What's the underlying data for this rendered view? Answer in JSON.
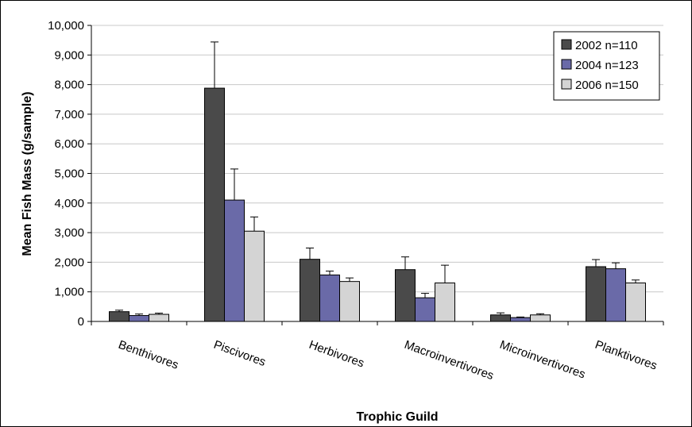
{
  "chart_data": {
    "type": "bar",
    "title": "",
    "xlabel": "Trophic Guild",
    "ylabel": "Mean Fish Mass (g/sample)",
    "ylim": [
      0,
      10000
    ],
    "yticks": [
      0,
      1000,
      2000,
      3000,
      4000,
      5000,
      6000,
      7000,
      8000,
      9000,
      10000
    ],
    "ytick_labels": [
      "0",
      "1,000",
      "2,000",
      "3,000",
      "4,000",
      "5,000",
      "6,000",
      "7,000",
      "8,000",
      "9,000",
      "10,000"
    ],
    "grid": "horizontal",
    "legend_position": "top-right",
    "categories": [
      "Benthivores",
      "Piscivores",
      "Herbivores",
      "Macroinvertivores",
      "Microinvertivores",
      "Planktivores"
    ],
    "series": [
      {
        "name": "2002 n=110",
        "color": "#4a4a4a",
        "values": [
          330,
          7880,
          2100,
          1750,
          220,
          1850
        ],
        "error_upper": [
          50,
          1560,
          380,
          430,
          70,
          240
        ]
      },
      {
        "name": "2004 n=123",
        "color": "#6a6aa8",
        "values": [
          200,
          4100,
          1570,
          800,
          130,
          1780
        ],
        "error_upper": [
          50,
          1050,
          130,
          150,
          20,
          200
        ]
      },
      {
        "name": "2006 n=150",
        "color": "#d4d4d4",
        "values": [
          240,
          3050,
          1350,
          1300,
          220,
          1300
        ],
        "error_upper": [
          40,
          480,
          120,
          600,
          40,
          100
        ]
      }
    ]
  }
}
